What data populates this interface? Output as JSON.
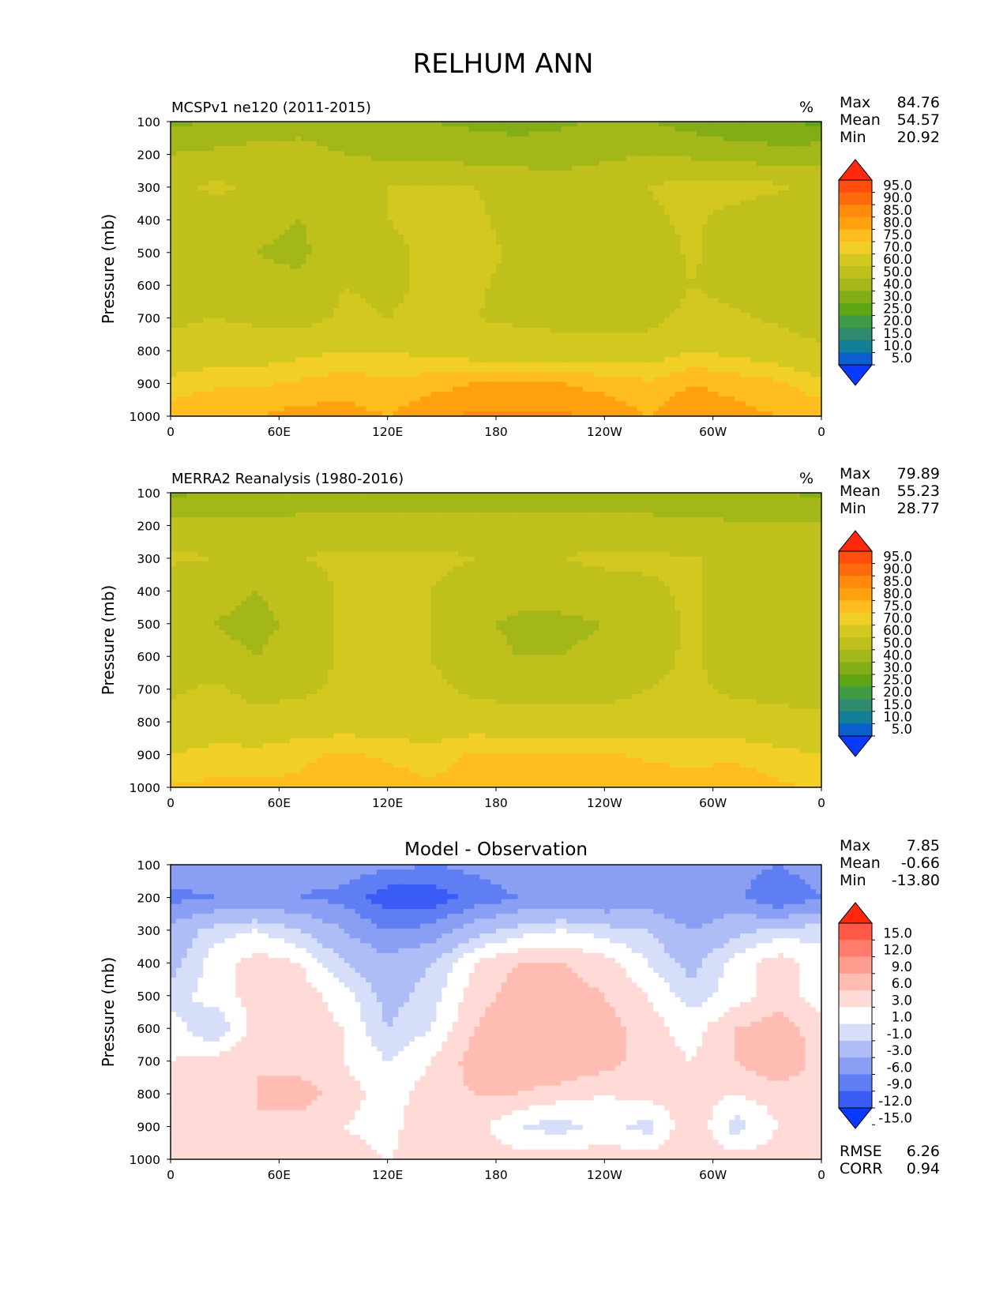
{
  "figure": {
    "title": "RELHUM ANN"
  },
  "chart_data": [
    {
      "type": "heatmap",
      "panel": "model",
      "title": "",
      "left_title": "MCSPv1 ne120 (2011-2015)",
      "units": "%",
      "ylabel": "Pressure (mb)",
      "xlabel": "",
      "x_ticks": [
        "0",
        "60E",
        "120E",
        "180",
        "120W",
        "60W",
        "0"
      ],
      "x_tick_values": [
        0,
        60,
        120,
        180,
        240,
        300,
        360
      ],
      "y_ticks": [
        "100",
        "200",
        "300",
        "400",
        "500",
        "600",
        "700",
        "800",
        "900",
        "1000"
      ],
      "y_tick_values": [
        100,
        200,
        300,
        400,
        500,
        600,
        700,
        800,
        900,
        1000
      ],
      "xlim": [
        0,
        360
      ],
      "ylim": [
        1000,
        100
      ],
      "y_inverted": true,
      "stats": {
        "max_label": "Max",
        "max": "84.76",
        "mean_label": "Mean",
        "mean": "54.57",
        "min_label": "Min",
        "min": "20.92"
      },
      "colorbar": {
        "levels": [
          "95.0",
          "90.0",
          "85.0",
          "80.0",
          "75.0",
          "70.0",
          "60.0",
          "50.0",
          "40.0",
          "30.0",
          "25.0",
          "20.0",
          "15.0",
          "10.0",
          "5.0"
        ],
        "colors": [
          "#ff2a0d",
          "#ff4d0d",
          "#ff6a0d",
          "#ff8a0d",
          "#ffa00d",
          "#ffbe1e",
          "#f2cf26",
          "#d2c820",
          "#bfc01c",
          "#a3b719",
          "#83ad16",
          "#5ea614",
          "#3f9a46",
          "#2f8a6e",
          "#117f95",
          "#0a5fcc",
          "#0a3aff"
        ],
        "extend": "both"
      },
      "field": {
        "lat_profile_desc": "zonal cross-section",
        "rows_top_to_bottom": [
          [
            38,
            40,
            44,
            48,
            46,
            42,
            40,
            38,
            36,
            38,
            42,
            40,
            36,
            32,
            30,
            28
          ],
          [
            50,
            52,
            54,
            52,
            50,
            48,
            46,
            46,
            46,
            46,
            48,
            50,
            48,
            46,
            44,
            46
          ],
          [
            56,
            62,
            58,
            54,
            56,
            60,
            62,
            60,
            56,
            54,
            56,
            60,
            64,
            64,
            62,
            56
          ],
          [
            54,
            56,
            52,
            50,
            52,
            60,
            64,
            62,
            56,
            52,
            52,
            58,
            62,
            56,
            52,
            50
          ],
          [
            52,
            54,
            50,
            48,
            58,
            56,
            64,
            64,
            58,
            52,
            50,
            52,
            62,
            54,
            50,
            50
          ],
          [
            54,
            56,
            52,
            52,
            60,
            58,
            62,
            62,
            56,
            52,
            52,
            52,
            60,
            56,
            52,
            50
          ],
          [
            58,
            60,
            58,
            56,
            62,
            60,
            62,
            60,
            58,
            56,
            56,
            56,
            64,
            62,
            58,
            54
          ],
          [
            64,
            66,
            66,
            68,
            70,
            70,
            68,
            66,
            66,
            66,
            66,
            66,
            70,
            68,
            66,
            62
          ],
          [
            72,
            74,
            74,
            76,
            78,
            76,
            78,
            80,
            80,
            80,
            78,
            76,
            80,
            78,
            76,
            72
          ],
          [
            78,
            80,
            80,
            82,
            82,
            80,
            84,
            86,
            86,
            86,
            84,
            80,
            84,
            82,
            80,
            78
          ]
        ]
      }
    },
    {
      "type": "heatmap",
      "panel": "observation",
      "title": "",
      "left_title": "MERRA2 Reanalysis (1980-2016)",
      "units": "%",
      "ylabel": "Pressure (mb)",
      "xlabel": "",
      "x_ticks": [
        "0",
        "60E",
        "120E",
        "180",
        "120W",
        "60W",
        "0"
      ],
      "x_tick_values": [
        0,
        60,
        120,
        180,
        240,
        300,
        360
      ],
      "y_ticks": [
        "100",
        "200",
        "300",
        "400",
        "500",
        "600",
        "700",
        "800",
        "900",
        "1000"
      ],
      "y_tick_values": [
        100,
        200,
        300,
        400,
        500,
        600,
        700,
        800,
        900,
        1000
      ],
      "xlim": [
        0,
        360
      ],
      "ylim": [
        1000,
        100
      ],
      "y_inverted": true,
      "stats": {
        "max_label": "Max",
        "max": "79.89",
        "mean_label": "Mean",
        "mean": "55.23",
        "min_label": "Min",
        "min": "28.77"
      },
      "colorbar": {
        "levels": [
          "95.0",
          "90.0",
          "85.0",
          "80.0",
          "75.0",
          "70.0",
          "60.0",
          "50.0",
          "40.0",
          "30.0",
          "25.0",
          "20.0",
          "15.0",
          "10.0",
          "5.0"
        ],
        "colors": [
          "#ff2a0d",
          "#ff4d0d",
          "#ff6a0d",
          "#ff8a0d",
          "#ffa00d",
          "#ffbe1e",
          "#f2cf26",
          "#d2c820",
          "#bfc01c",
          "#a3b719",
          "#83ad16",
          "#5ea614",
          "#3f9a46",
          "#2f8a6e",
          "#117f95",
          "#0a5fcc",
          "#0a3aff"
        ],
        "extend": "both"
      },
      "field": {
        "rows_top_to_bottom": [
          [
            38,
            40,
            42,
            42,
            42,
            42,
            42,
            42,
            42,
            42,
            42,
            42,
            42,
            40,
            40,
            38
          ],
          [
            54,
            54,
            52,
            54,
            54,
            54,
            54,
            54,
            54,
            54,
            54,
            54,
            52,
            52,
            52,
            52
          ],
          [
            62,
            60,
            56,
            60,
            62,
            62,
            62,
            60,
            60,
            60,
            62,
            62,
            60,
            60,
            58,
            56
          ],
          [
            52,
            52,
            50,
            54,
            62,
            62,
            60,
            56,
            54,
            54,
            56,
            58,
            62,
            54,
            52,
            52
          ],
          [
            50,
            50,
            48,
            52,
            62,
            62,
            60,
            52,
            48,
            48,
            50,
            54,
            62,
            52,
            50,
            50
          ],
          [
            52,
            52,
            50,
            54,
            62,
            62,
            60,
            54,
            50,
            50,
            52,
            56,
            62,
            54,
            52,
            52
          ],
          [
            58,
            62,
            56,
            58,
            62,
            62,
            62,
            58,
            56,
            56,
            56,
            60,
            62,
            58,
            56,
            56
          ],
          [
            64,
            66,
            64,
            66,
            66,
            66,
            66,
            66,
            64,
            64,
            64,
            66,
            66,
            66,
            64,
            62
          ],
          [
            70,
            72,
            72,
            74,
            76,
            74,
            72,
            76,
            76,
            76,
            76,
            74,
            74,
            74,
            72,
            70
          ],
          [
            76,
            76,
            76,
            76,
            78,
            78,
            76,
            78,
            78,
            78,
            78,
            78,
            76,
            78,
            76,
            74
          ]
        ]
      }
    },
    {
      "type": "heatmap",
      "panel": "difference",
      "title": "Model - Observation",
      "left_title": "",
      "units": "",
      "ylabel": "Pressure (mb)",
      "xlabel": "",
      "x_ticks": [
        "0",
        "60E",
        "120E",
        "180",
        "120W",
        "60W",
        "0"
      ],
      "x_tick_values": [
        0,
        60,
        120,
        180,
        240,
        300,
        360
      ],
      "y_ticks": [
        "100",
        "200",
        "300",
        "400",
        "500",
        "600",
        "700",
        "800",
        "900",
        "1000"
      ],
      "y_tick_values": [
        100,
        200,
        300,
        400,
        500,
        600,
        700,
        800,
        900,
        1000
      ],
      "xlim": [
        0,
        360
      ],
      "ylim": [
        1000,
        100
      ],
      "y_inverted": true,
      "stats": {
        "max_label": "Max",
        "max": "7.85",
        "mean_label": "Mean",
        "mean": "-0.66",
        "min_label": "Min",
        "min": "-13.80"
      },
      "metrics": {
        "rmse_label": "RMSE",
        "rmse": "6.26",
        "corr_label": "CORR",
        "corr": "0.94"
      },
      "colorbar": {
        "levels": [
          "15.0",
          "12.0",
          "9.0",
          "6.0",
          "3.0",
          "1.0",
          "-1.0",
          "-3.0",
          "-6.0",
          "-9.0",
          "-12.0",
          "-15.0"
        ],
        "colors": [
          "#ff2a0d",
          "#ff5a45",
          "#ff7c6c",
          "#ff9e90",
          "#ffbcb2",
          "#ffdad6",
          "#ffffff",
          "#d6def9",
          "#aebdf5",
          "#8a9ff4",
          "#5f7ef4",
          "#3a5cf6",
          "#0a3aff"
        ],
        "extend": "both"
      },
      "field": {
        "rows_top_to_bottom": [
          [
            -6,
            -7,
            -9,
            -8,
            -7,
            -8,
            -9,
            -8,
            -7,
            -8,
            -9,
            -8,
            -7,
            -8,
            -9,
            -7
          ],
          [
            -10,
            -9,
            -8,
            -9,
            -10,
            -14,
            -14,
            -11,
            -9,
            -8,
            -9,
            -8,
            -9,
            -8,
            -12,
            -9
          ],
          [
            -5,
            -2,
            -1,
            -3,
            -6,
            -9,
            -8,
            -4,
            -2,
            -1,
            -2,
            -3,
            -6,
            -4,
            -2,
            -2
          ],
          [
            -4,
            0,
            2,
            1,
            -3,
            -5,
            -3,
            1,
            3,
            3,
            2,
            -1,
            -4,
            0,
            2,
            0
          ],
          [
            -2,
            0,
            2,
            2,
            0,
            -4,
            -2,
            2,
            4,
            4,
            3,
            1,
            -2,
            0,
            2,
            0
          ],
          [
            0,
            -3,
            2,
            2,
            1,
            -3,
            -1,
            3,
            5,
            5,
            4,
            2,
            0,
            3,
            4,
            2
          ],
          [
            1,
            2,
            3,
            2,
            1,
            -1,
            1,
            4,
            5,
            5,
            4,
            2,
            1,
            3,
            5,
            2
          ],
          [
            2,
            3,
            3,
            4,
            2,
            0,
            2,
            3,
            3,
            2,
            1,
            2,
            2,
            1,
            2,
            2
          ],
          [
            1,
            3,
            3,
            2,
            1,
            0,
            3,
            2,
            -1,
            -2,
            0,
            -2,
            3,
            -2,
            1,
            1
          ],
          [
            2,
            2,
            2,
            3,
            2,
            1,
            2,
            2,
            2,
            2,
            2,
            2,
            3,
            2,
            2,
            2
          ]
        ]
      }
    }
  ]
}
